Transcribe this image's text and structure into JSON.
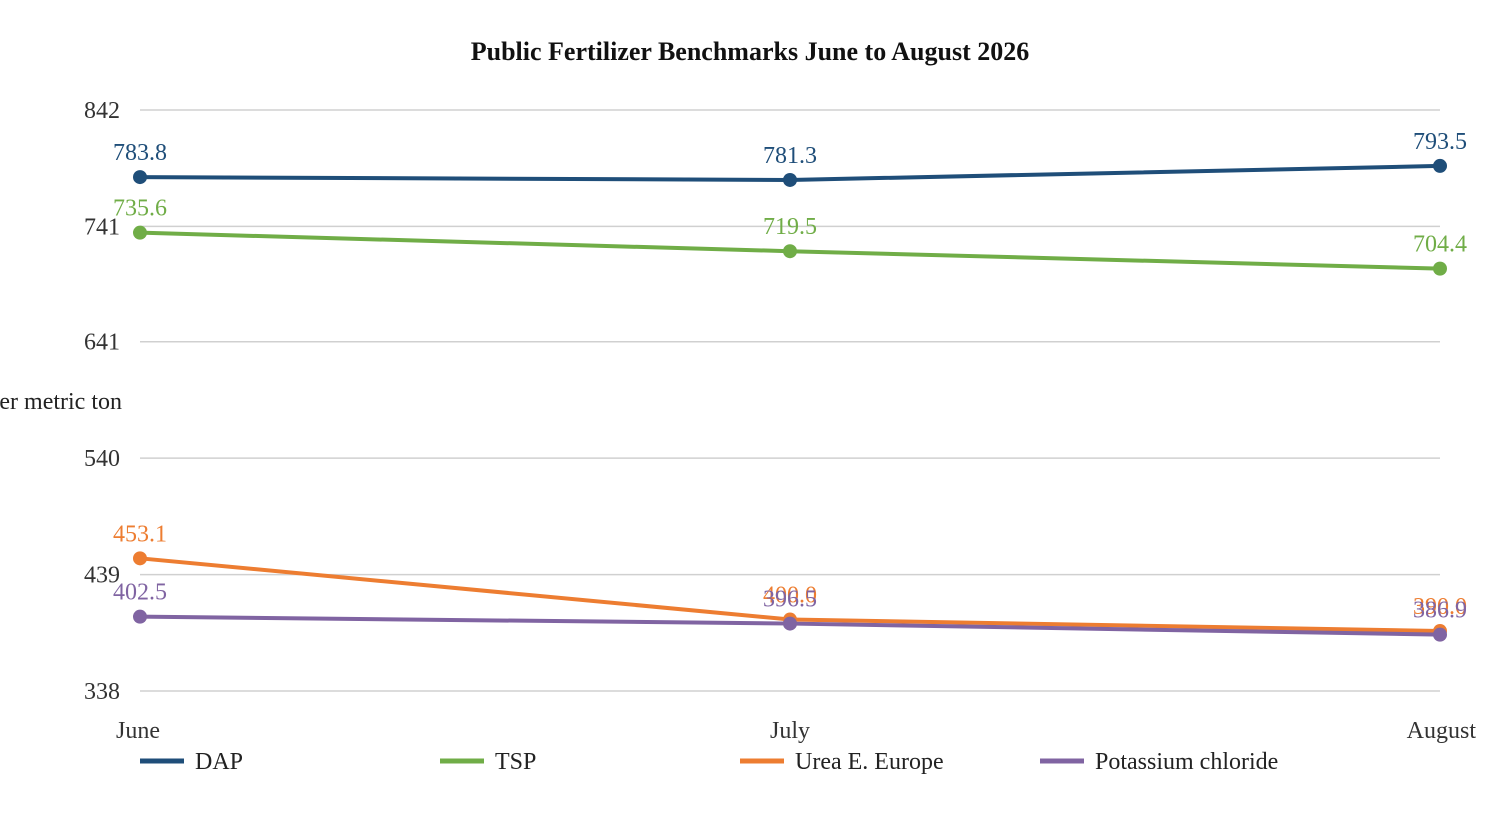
{
  "chart_data": {
    "type": "line",
    "title": "Public Fertilizer Benchmarks June to August 2026",
    "xlabel": "",
    "ylabel": "USD per metric ton",
    "categories": [
      "June",
      "July",
      "August"
    ],
    "ylim": [
      338,
      842
    ],
    "yticks": [
      338,
      439,
      540,
      641,
      741,
      842
    ],
    "grid": true,
    "legend_position": "bottom",
    "series": [
      {
        "name": "DAP",
        "color": "#1f4e79",
        "values": [
          783.8,
          781.3,
          793.5
        ],
        "labels": [
          "783.8",
          "781.3",
          "793.5"
        ]
      },
      {
        "name": "TSP",
        "color": "#70ad47",
        "values": [
          735.6,
          719.5,
          704.4
        ],
        "labels": [
          "735.6",
          "719.5",
          "704.4"
        ]
      },
      {
        "name": "Urea E. Europe",
        "color": "#ed7d31",
        "values": [
          453.1,
          400.0,
          390.0
        ],
        "labels": [
          "453.1",
          "400.0",
          "390.0"
        ]
      },
      {
        "name": "Potassium chloride",
        "color": "#8064a2",
        "values": [
          402.5,
          396.5,
          386.9
        ],
        "labels": [
          "402.5",
          "396.5",
          "386.9"
        ]
      }
    ]
  }
}
